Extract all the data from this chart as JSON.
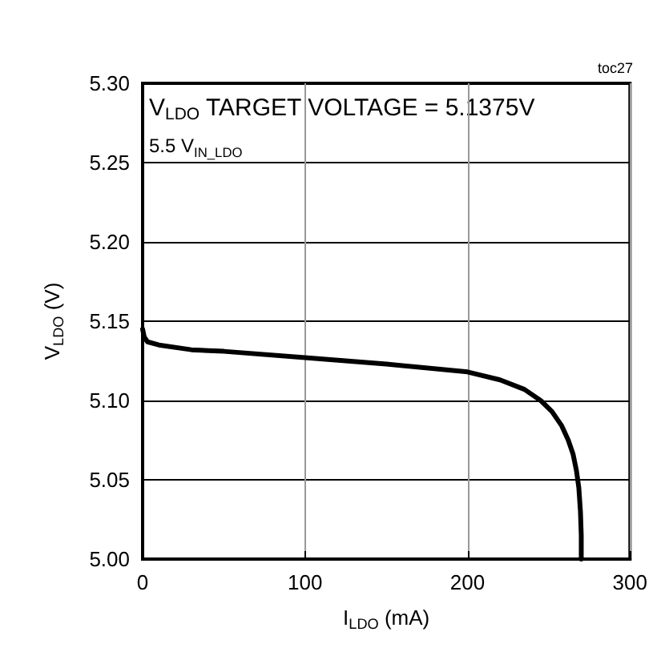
{
  "chart_data": {
    "type": "line",
    "xlabel": "I$_{LDO}$ (mA)",
    "ylabel": "V$_{LDO}$ (V)",
    "annotations": [
      "V$_{LDO}$ TARGET VOLTAGE = 5.1375V",
      "5.5 V$_{IN_LDO}$",
      "toc27"
    ],
    "series": [
      {
        "color": "#000000",
        "x": [
          0,
          1,
          3,
          10,
          30,
          50,
          100,
          150,
          200,
          220,
          235,
          245,
          252,
          258,
          262,
          265,
          267,
          268.5,
          269.5,
          270,
          270
        ],
        "values": [
          5.145,
          5.14,
          5.137,
          5.135,
          5.132,
          5.131,
          5.127,
          5.123,
          5.118,
          5.113,
          5.107,
          5.1,
          5.093,
          5.084,
          5.075,
          5.066,
          5.056,
          5.045,
          5.03,
          5.015,
          5.0
        ]
      }
    ],
    "xlim": [
      0,
      300
    ],
    "xticks": [
      0,
      100,
      200,
      300
    ],
    "ylim": [
      5.0,
      5.3
    ],
    "yticks": [
      {
        "value": 5.0,
        "label": "5.00"
      },
      5.05,
      {
        "value": 5.1,
        "label": "5.10"
      },
      5.15,
      {
        "value": 5.2,
        "label": "5.20"
      },
      5.25,
      {
        "value": 5.3,
        "label": "5.30"
      }
    ],
    "grid": true,
    "marker": "none",
    "line_style": "solid"
  }
}
